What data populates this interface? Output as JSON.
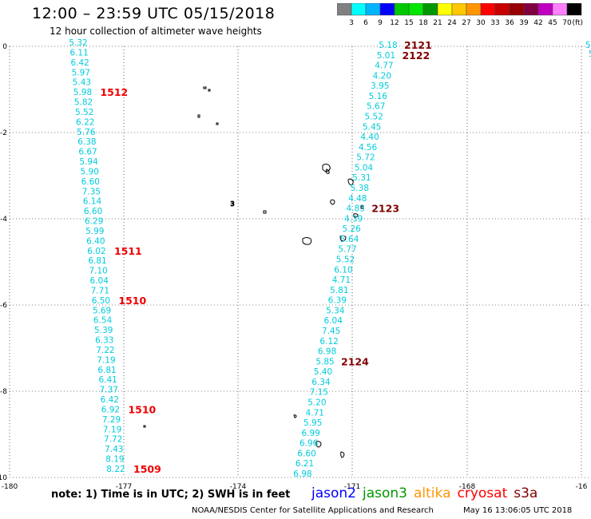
{
  "title": "12:00 – 23:59 UTC 05/15/2018",
  "subtitle": "12 hour collection of altimeter wave heights",
  "legend": {
    "unit": "(ft)",
    "colors": [
      "#808080",
      "#00ffff",
      "#00b4ff",
      "#0000ff",
      "#00c800",
      "#00e600",
      "#009600",
      "#ffff00",
      "#ffc800",
      "#ff9600",
      "#ff0000",
      "#c80000",
      "#960000",
      "#800040",
      "#c000c0",
      "#ff80ff",
      "#000000"
    ],
    "labels": [
      "3",
      "6",
      "9",
      "12",
      "15",
      "18",
      "21",
      "24",
      "27",
      "30",
      "33",
      "36",
      "39",
      "42",
      "45",
      "70"
    ]
  },
  "axes": {
    "lon_ticks": [
      "-180",
      "-177",
      "-174",
      "-171",
      "-168",
      "-16"
    ],
    "lat_ticks": [
      "0",
      "-2",
      "-4",
      "-6",
      "-8",
      "-10"
    ]
  },
  "track_west": {
    "color": "#00ccdd",
    "values": [
      "5.32",
      "6.11",
      "6.42",
      "5.97",
      "5.43",
      "5.98",
      "5.82",
      "5.52",
      "6.22",
      "5.76",
      "6.38",
      "6.67",
      "5.94",
      "5.90",
      "6.60",
      "7.35",
      "6.14",
      "6.60",
      "6.29",
      "5.99",
      "6.40",
      "6.02",
      "6.81",
      "7.10",
      "6.04",
      "7.71",
      "6.50",
      "5.69",
      "6.54",
      "5.39",
      "6.33",
      "7.22",
      "7.19",
      "6.81",
      "6.41",
      "7.37",
      "6.42",
      "6.92",
      "7.29",
      "7.19",
      "7.72",
      "7.43",
      "8.19",
      "8.22"
    ]
  },
  "track_east": {
    "color": "#00ccdd",
    "values": [
      "5.18",
      "5.01",
      "4.77",
      "4.20",
      "3.95",
      "5.16",
      "5.67",
      "5.52",
      "5.45",
      "4.40",
      "4.56",
      "5.72",
      "5.04",
      "5.31",
      "5.38",
      "4.48",
      "4.83",
      "4.39",
      "5.26",
      "5.64",
      "5.77",
      "5.52",
      "6.10",
      "4.71",
      "5.81",
      "6.39",
      "5.34",
      "6.04",
      "7.45",
      "6.12",
      "6.98",
      "5.85",
      "5.40",
      "6.34",
      "7.15",
      "5.20",
      "4.71",
      "5.95",
      "6.99",
      "6.96",
      "6.60",
      "6.21",
      "6.98"
    ]
  },
  "track_edge": {
    "color": "#00ccdd",
    "values": [
      "5",
      "5"
    ]
  },
  "time_labels_west": {
    "color": "#ee0000",
    "items": [
      {
        "label": "1512",
        "index": 5
      },
      {
        "label": "1511",
        "index": 21
      },
      {
        "label": "1510",
        "index": 26
      },
      {
        "label": "1510",
        "index": 37
      },
      {
        "label": "1509",
        "index": 43
      }
    ]
  },
  "time_labels_east": {
    "color": "#800000",
    "items": [
      {
        "label": "2121",
        "index": 0
      },
      {
        "label": "2122",
        "index": 1
      },
      {
        "label": "2123",
        "index": 16
      },
      {
        "label": "2124",
        "index": 31
      }
    ]
  },
  "island_label": "3",
  "note": "note:  1) Time is in UTC;  2) SWH is in feet",
  "missions": [
    {
      "name": "jason2",
      "color": "#0000ff"
    },
    {
      "name": "jason3",
      "color": "#009600"
    },
    {
      "name": "altika",
      "color": "#ff9600"
    },
    {
      "name": "cryosat",
      "color": "#ff0000"
    },
    {
      "name": "s3a",
      "color": "#800000"
    }
  ],
  "credit": "NOAA/NESDIS Center for Satellite Applications and Research",
  "timestamp": "May 16 13:06:05 UTC 2018"
}
